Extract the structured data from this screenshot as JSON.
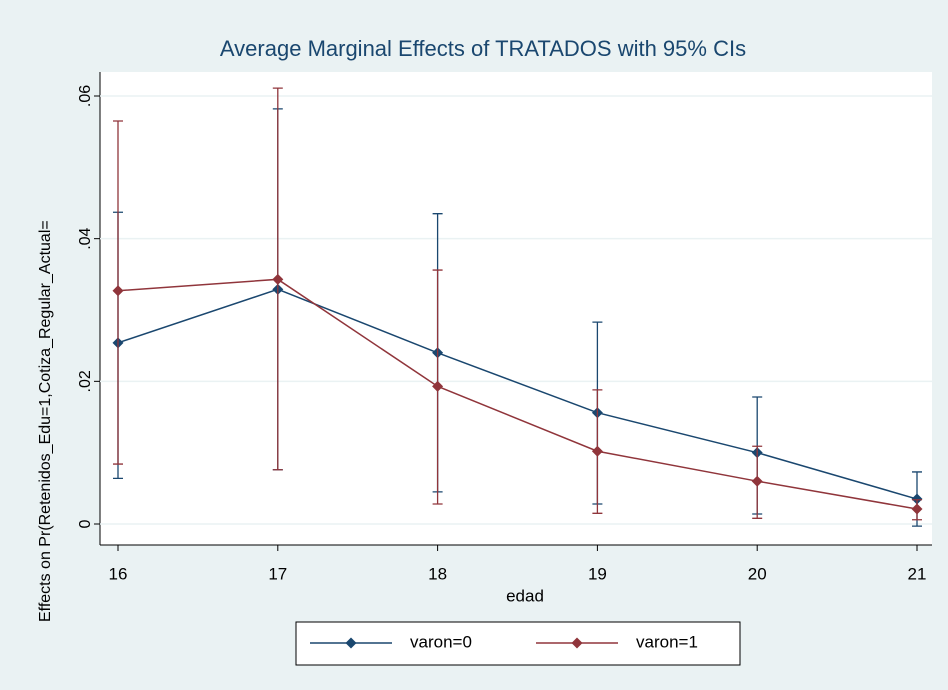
{
  "chart_data": {
    "type": "line",
    "title": "Average Marginal Effects of TRATADOS with 95% CIs",
    "x_label": "edad",
    "y_label": "Effects on Pr(Retenidos_Edu=1,Cotiza_Regular_Actual=",
    "x": [
      16,
      17,
      18,
      19,
      20,
      21
    ],
    "xlim": [
      16,
      21
    ],
    "xticks": [
      16,
      17,
      18,
      19,
      20,
      21
    ],
    "ylim": [
      0,
      0.06
    ],
    "yticks": [
      0,
      {
        "value": 0.02,
        "label": ".02"
      },
      {
        "value": 0.04,
        "label": ".04"
      },
      {
        "value": 0.06,
        "label": ".06"
      }
    ],
    "grid": true,
    "legend": "bottom",
    "series": [
      {
        "name": "varon=0",
        "color": "#1a476f",
        "values": [
          0.0254,
          0.0329,
          0.024,
          0.0156,
          0.01,
          0.0035
        ],
        "lower": [
          0.0064,
          0.0076,
          0.0045,
          0.0028,
          0.0014,
          -0.0003
        ],
        "upper": [
          0.0437,
          0.0582,
          0.0435,
          0.0283,
          0.0178,
          0.0073
        ]
      },
      {
        "name": "varon=1",
        "color": "#90353b",
        "values": [
          0.0327,
          0.0343,
          0.0193,
          0.0102,
          0.006,
          0.0021
        ],
        "lower": [
          0.0084,
          0.0076,
          0.0028,
          0.0015,
          0.0008,
          0.0006
        ],
        "upper": [
          0.0565,
          0.0611,
          0.0356,
          0.0188,
          0.0109,
          0.0034
        ]
      }
    ]
  }
}
